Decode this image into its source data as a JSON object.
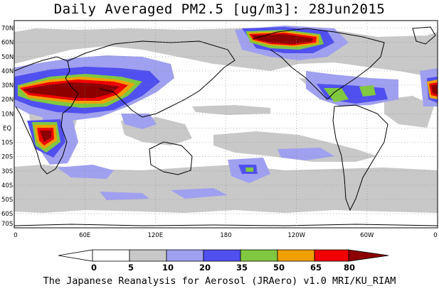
{
  "title": "Daily Averaged PM2.5 [ug/m3]: 28Jun2015",
  "footer": "The Japanese Reanalysis for Aerosol (JRAero) v1.0 MRI/KU_RIAM",
  "lat_labels": [
    "70N",
    "60N",
    "50N",
    "40N",
    "30N",
    "20N",
    "10N",
    "EQ",
    "10S",
    "20S",
    "30S",
    "40S",
    "50S",
    "60S",
    "70S"
  ],
  "lon_labels": [
    "0",
    "60E",
    "120E",
    "180",
    "120W",
    "60W",
    "0"
  ],
  "colorbar": {
    "ticks": [
      "0",
      "5",
      "10",
      "20",
      "35",
      "50",
      "65",
      "80"
    ],
    "colors": [
      "#ffffff",
      "#c8c8c8",
      "#a0a0f0",
      "#5050f0",
      "#80c840",
      "#f0a000",
      "#f00000",
      "#8c0000"
    ]
  }
}
